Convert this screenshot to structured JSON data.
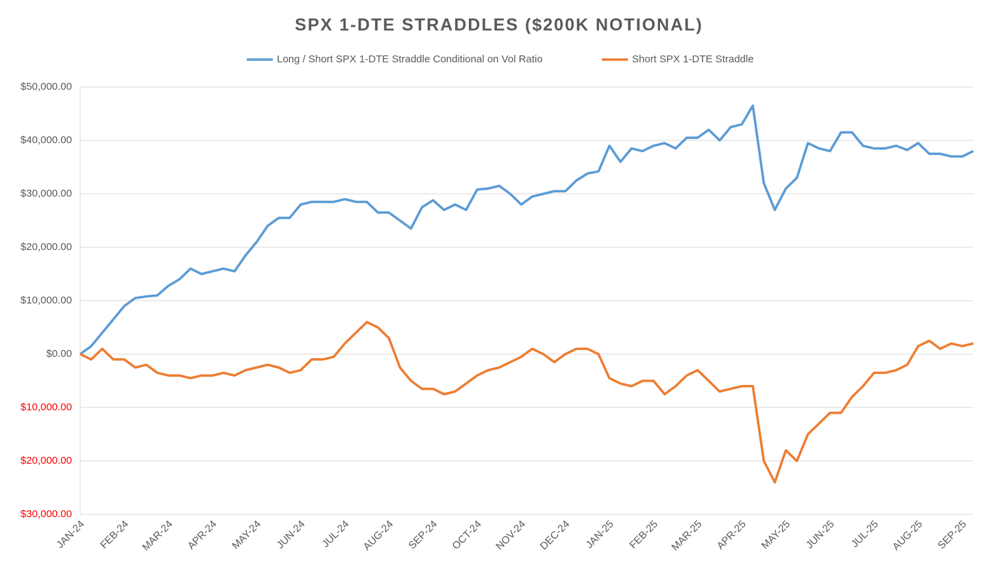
{
  "chart_data": {
    "type": "line",
    "title": "SPX 1-DTE STRADDLES ($200K NOTIONAL)",
    "categories": [
      "JAN-24",
      null,
      null,
      null,
      "FEB-24",
      null,
      null,
      null,
      "MAR-24",
      null,
      null,
      null,
      "APR-24",
      null,
      null,
      null,
      "MAY-24",
      null,
      null,
      null,
      "JUN-24",
      null,
      null,
      null,
      "JUL-24",
      null,
      null,
      null,
      "AUG-24",
      null,
      null,
      null,
      "SEP-24",
      null,
      null,
      null,
      "OCT-24",
      null,
      null,
      null,
      "NOV-24",
      null,
      null,
      null,
      "DEC-24",
      null,
      null,
      null,
      "JAN-25",
      null,
      null,
      null,
      "FEB-25",
      null,
      null,
      null,
      "MAR-25",
      null,
      null,
      null,
      "APR-25",
      null,
      null,
      null,
      "MAY-25",
      null,
      null,
      null,
      "JUN-25",
      null,
      null,
      null,
      "JUL-25",
      null,
      null,
      null,
      "AUG-25",
      null,
      null,
      null,
      "SEP-25",
      null
    ],
    "series": [
      {
        "name": "Long / Short SPX 1-DTE Straddle Conditional on Vol Ratio",
        "color": "#5b9bd5",
        "values": [
          0,
          1500,
          4000,
          6500,
          9000,
          10500,
          10800,
          11000,
          12800,
          14000,
          16000,
          15000,
          15500,
          16000,
          15500,
          18500,
          21000,
          24000,
          25500,
          25500,
          28000,
          28500,
          28500,
          28500,
          29000,
          28500,
          28500,
          26500,
          26500,
          25000,
          23500,
          27500,
          28800,
          27000,
          28000,
          27000,
          30800,
          31000,
          31500,
          30000,
          28000,
          29500,
          30000,
          30500,
          30500,
          32500,
          33800,
          34200,
          39000,
          36000,
          38500,
          38000,
          39000,
          39500,
          38500,
          40500,
          40500,
          42000,
          40000,
          42500,
          43000,
          46500,
          32000,
          27000,
          31000,
          33000,
          39500,
          38500,
          38000,
          41500,
          41500,
          39000,
          38500,
          38500,
          39000,
          38200,
          39500,
          37500,
          37500,
          37000,
          37000,
          38000
        ]
      },
      {
        "name": "Short SPX 1-DTE Straddle",
        "color": "#ed7d31",
        "values": [
          0,
          -1000,
          1000,
          -1000,
          -1000,
          -2500,
          -2000,
          -3500,
          -4000,
          -4000,
          -4500,
          -4000,
          -4000,
          -3500,
          -4000,
          -3000,
          -2500,
          -2000,
          -2500,
          -3500,
          -3000,
          -1000,
          -1000,
          -500,
          2000,
          4000,
          6000,
          5000,
          3000,
          -2500,
          -5000,
          -6500,
          -6500,
          -7500,
          -7000,
          -5500,
          -4000,
          -3000,
          -2500,
          -1500,
          -500,
          1000,
          0,
          -1500,
          0,
          1000,
          1000,
          0,
          -4500,
          -5500,
          -6000,
          -5000,
          -5000,
          -7500,
          -6000,
          -4000,
          -3000,
          -5000,
          -7000,
          -6500,
          -6000,
          -6000,
          -20000,
          -24000,
          -18000,
          -20000,
          -15000,
          -13000,
          -11000,
          -11000,
          -8000,
          -6000,
          -3500,
          -3500,
          -3000,
          -2000,
          1500,
          2500,
          1000,
          2000,
          1500,
          2000
        ]
      }
    ],
    "ylim": [
      -30000,
      50000
    ],
    "yticks": [
      {
        "value": -30000,
        "label": "$30,000.00"
      },
      {
        "value": -20000,
        "label": "$20,000.00"
      },
      {
        "value": -10000,
        "label": "$10,000.00"
      },
      {
        "value": 0,
        "label": "$0.00"
      },
      {
        "value": 10000,
        "label": "$10,000.00"
      },
      {
        "value": 20000,
        "label": "$20,000.00"
      },
      {
        "value": 30000,
        "label": "$30,000.00"
      },
      {
        "value": 40000,
        "label": "$40,000.00"
      },
      {
        "value": 50000,
        "label": "$50,000.00"
      }
    ],
    "negative_tick_color": "#ff0000",
    "grid": true,
    "legend": "top"
  }
}
